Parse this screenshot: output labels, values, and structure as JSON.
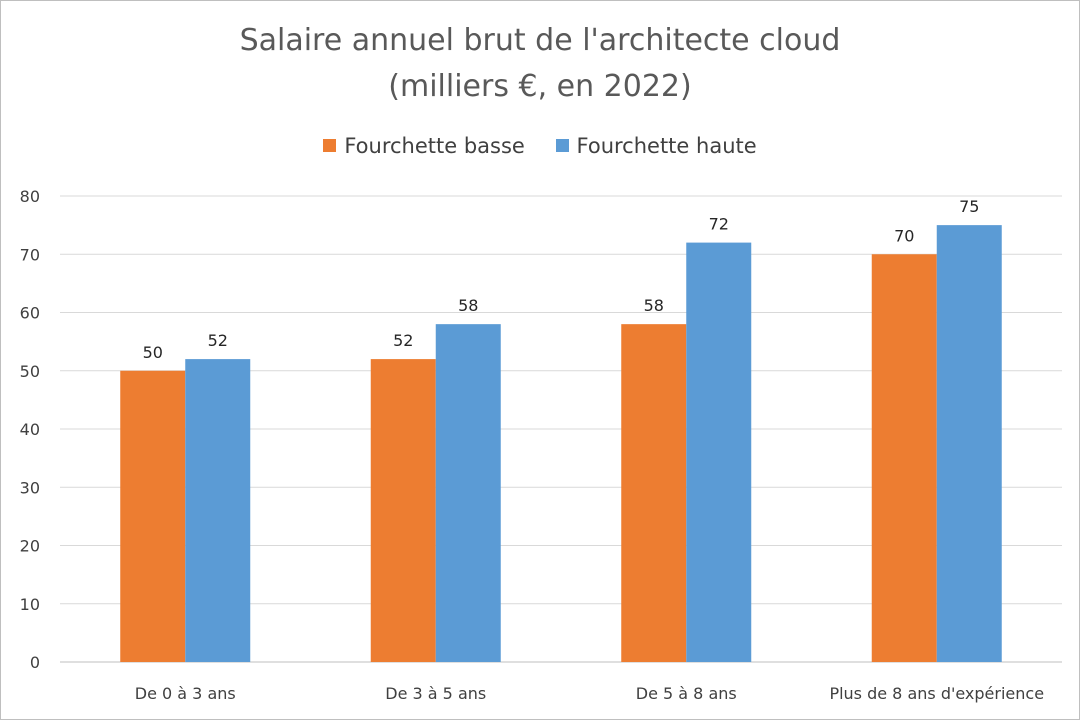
{
  "chart_data": {
    "type": "bar",
    "title_line1": "Salaire annuel brut de l'architecte cloud",
    "title_line2": "(milliers €, en 2022)",
    "categories": [
      "De 0 à 3 ans",
      "De 3 à 5 ans",
      "De 5 à 8 ans",
      "Plus de 8 ans d'expérience"
    ],
    "series": [
      {
        "name": "Fourchette basse",
        "values": [
          50,
          52,
          58,
          70
        ],
        "color": "#ED7D31"
      },
      {
        "name": "Fourchette haute",
        "values": [
          52,
          58,
          72,
          75
        ],
        "color": "#5B9BD5"
      }
    ],
    "ylim": [
      0,
      80
    ],
    "yticks": [
      0,
      10,
      20,
      30,
      40,
      50,
      60,
      70,
      80
    ],
    "grid": true,
    "legend_position": "top",
    "data_labels": true
  }
}
